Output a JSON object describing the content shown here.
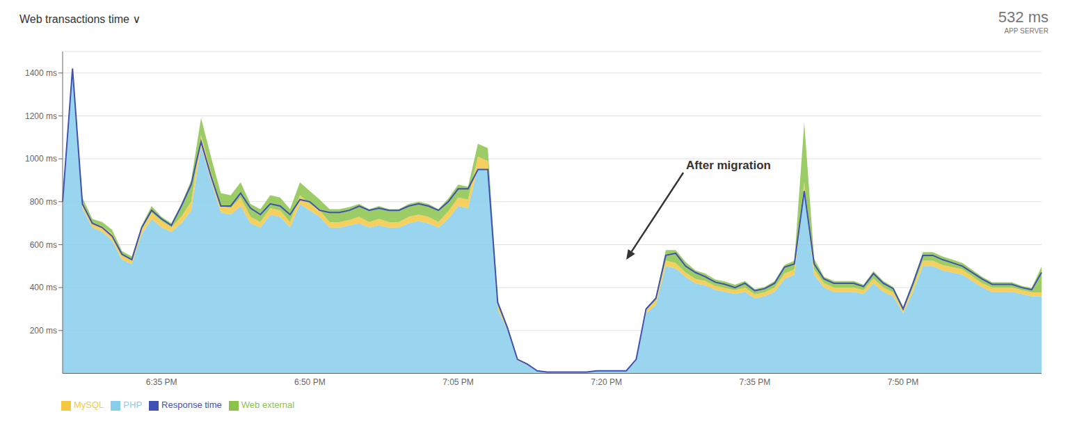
{
  "chart_data": {
    "type": "area",
    "title": "Web transactions time  ∨",
    "stacked": true,
    "grid": true,
    "legend": "bottom",
    "categories": [
      null,
      null,
      null,
      null,
      null,
      null,
      null,
      null,
      null,
      null,
      "6:35 PM",
      null,
      null,
      null,
      null,
      null,
      null,
      null,
      null,
      null,
      null,
      null,
      null,
      null,
      null,
      "6:50 PM",
      null,
      null,
      null,
      null,
      null,
      null,
      null,
      null,
      null,
      null,
      null,
      null,
      null,
      null,
      "7:05 PM",
      null,
      null,
      null,
      null,
      null,
      null,
      null,
      null,
      null,
      null,
      null,
      null,
      null,
      null,
      "7:20 PM",
      null,
      null,
      null,
      null,
      null,
      null,
      null,
      null,
      null,
      null,
      null,
      null,
      null,
      null,
      "7:35 PM",
      null,
      null,
      null,
      null,
      null,
      null,
      null,
      null,
      null,
      null,
      null,
      null,
      null,
      null,
      "7:50 PM",
      null,
      null,
      null,
      null,
      null,
      null,
      null,
      null,
      null,
      null,
      null,
      null,
      null,
      null
    ],
    "ylim": [
      0,
      1500
    ],
    "yticks": [
      {
        "value": 200,
        "label": "200 ms"
      },
      {
        "value": 400,
        "label": "400 ms"
      },
      {
        "value": 600,
        "label": "600 ms"
      },
      {
        "value": 800,
        "label": "800 ms"
      },
      {
        "value": 1000,
        "label": "1000 ms"
      },
      {
        "value": 1200,
        "label": "1200 ms"
      },
      {
        "value": 1400,
        "label": "1400 ms"
      }
    ],
    "annotations": [
      {
        "text": "532 ms"
      },
      {
        "text": "APP SERVER"
      },
      {
        "text": "After migration",
        "x": 57,
        "y": 530
      }
    ],
    "series": [
      {
        "name": "PHP",
        "type": "area",
        "color": "#87CEEB",
        "values": [
          780,
          1390,
          770,
          680,
          660,
          620,
          530,
          510,
          650,
          720,
          680,
          660,
          700,
          760,
          1060,
          900,
          750,
          740,
          780,
          700,
          680,
          740,
          730,
          680,
          790,
          760,
          730,
          680,
          680,
          690,
          700,
          680,
          690,
          680,
          680,
          700,
          710,
          700,
          680,
          720,
          780,
          770,
          960,
          940,
          300,
          200,
          60,
          40,
          10,
          5,
          5,
          5,
          5,
          5,
          10,
          10,
          10,
          10,
          60,
          280,
          320,
          500,
          490,
          450,
          420,
          410,
          390,
          380,
          370,
          380,
          350,
          360,
          380,
          440,
          460,
          840,
          460,
          400,
          380,
          380,
          380,
          370,
          420,
          380,
          360,
          280,
          380,
          500,
          500,
          480,
          470,
          460,
          430,
          400,
          380,
          380,
          380,
          370,
          360,
          360
        ]
      },
      {
        "name": "MySQL",
        "type": "area",
        "color": "#F5C842",
        "values": [
          30,
          20,
          30,
          20,
          25,
          30,
          20,
          15,
          20,
          30,
          30,
          20,
          30,
          40,
          50,
          40,
          30,
          30,
          40,
          30,
          25,
          30,
          30,
          25,
          40,
          30,
          30,
          25,
          25,
          25,
          30,
          25,
          30,
          25,
          25,
          30,
          30,
          30,
          25,
          35,
          40,
          40,
          50,
          50,
          20,
          10,
          5,
          3,
          2,
          1,
          1,
          1,
          1,
          1,
          2,
          2,
          2,
          2,
          5,
          15,
          20,
          25,
          25,
          20,
          20,
          20,
          18,
          18,
          18,
          20,
          18,
          18,
          20,
          25,
          25,
          50,
          25,
          20,
          20,
          20,
          20,
          18,
          22,
          20,
          18,
          15,
          20,
          25,
          25,
          25,
          25,
          25,
          22,
          20,
          20,
          20,
          20,
          18,
          18,
          18
        ]
      },
      {
        "name": "Web external",
        "type": "area",
        "color": "#8BC34A",
        "values": [
          20,
          20,
          20,
          20,
          20,
          20,
          20,
          20,
          20,
          30,
          20,
          20,
          60,
          100,
          80,
          70,
          60,
          60,
          70,
          60,
          60,
          60,
          60,
          60,
          60,
          60,
          50,
          60,
          60,
          60,
          60,
          60,
          60,
          60,
          60,
          60,
          60,
          60,
          60,
          60,
          60,
          60,
          60,
          60,
          20,
          10,
          3,
          2,
          1,
          0,
          0,
          0,
          0,
          0,
          1,
          1,
          1,
          1,
          3,
          10,
          15,
          50,
          60,
          50,
          40,
          35,
          30,
          30,
          25,
          30,
          25,
          25,
          30,
          40,
          40,
          280,
          50,
          30,
          30,
          30,
          30,
          25,
          35,
          30,
          25,
          15,
          30,
          40,
          40,
          40,
          35,
          30,
          30,
          30,
          25,
          25,
          25,
          20,
          20,
          120
        ]
      },
      {
        "name": "Response time",
        "type": "line",
        "color": "#3F51B5",
        "values": [
          800,
          1420,
          790,
          700,
          680,
          640,
          555,
          530,
          680,
          760,
          720,
          690,
          780,
          880,
          1080,
          920,
          780,
          780,
          840,
          770,
          740,
          790,
          780,
          740,
          810,
          800,
          760,
          750,
          750,
          760,
          780,
          760,
          770,
          760,
          760,
          780,
          790,
          780,
          760,
          800,
          860,
          860,
          950,
          950,
          330,
          210,
          65,
          43,
          12,
          6,
          6,
          6,
          6,
          6,
          12,
          12,
          12,
          12,
          65,
          300,
          350,
          550,
          560,
          500,
          470,
          450,
          425,
          415,
          400,
          420,
          385,
          395,
          420,
          495,
          510,
          850,
          510,
          440,
          420,
          420,
          420,
          405,
          465,
          420,
          395,
          300,
          420,
          550,
          550,
          530,
          515,
          500,
          470,
          440,
          415,
          415,
          415,
          400,
          390,
          470
        ]
      }
    ]
  }
}
